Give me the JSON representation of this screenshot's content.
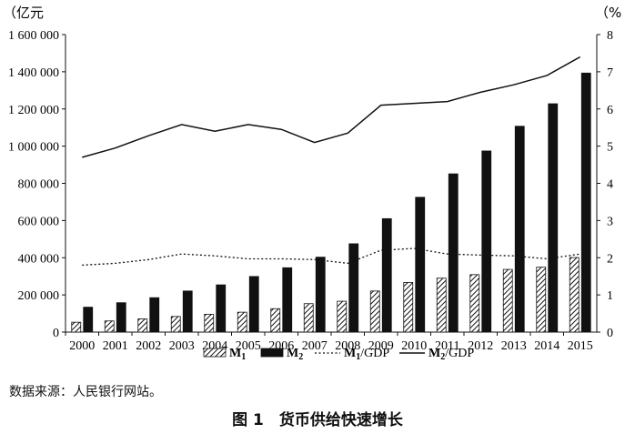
{
  "chart_data": {
    "type": "bar",
    "categories": [
      "2000",
      "2001",
      "2002",
      "2003",
      "2004",
      "2005",
      "2006",
      "2007",
      "2008",
      "2009",
      "2010",
      "2011",
      "2012",
      "2013",
      "2014",
      "2015"
    ],
    "left_axis": {
      "unit": "（亿元",
      "ylim": [
        0,
        1600000
      ],
      "ticks": [
        0,
        200000,
        400000,
        600000,
        800000,
        1000000,
        1200000,
        1400000,
        1600000
      ],
      "tick_labels": [
        "0",
        "200 000",
        "400 000",
        "600 000",
        "800 000",
        "1 000 000",
        "1 200 000",
        "1 400 000",
        "1 600 000"
      ]
    },
    "right_axis": {
      "unit": "（%",
      "ylim": [
        0,
        8
      ],
      "ticks": [
        0,
        1,
        2,
        3,
        4,
        5,
        6,
        7,
        8
      ],
      "tick_labels": [
        "0",
        "1",
        "2",
        "3",
        "4",
        "5",
        "6",
        "7",
        "8"
      ]
    },
    "series": [
      {
        "name": "M",
        "sub": "1",
        "kind": "bar",
        "pattern": "hatch",
        "axis": "left",
        "values": [
          53000,
          60000,
          71000,
          84000,
          96000,
          107000,
          126000,
          153000,
          166000,
          221000,
          267000,
          290000,
          309000,
          337000,
          349000,
          401000
        ]
      },
      {
        "name": "M",
        "sub": "2",
        "kind": "bar",
        "pattern": "solid",
        "axis": "left",
        "values": [
          134000,
          158000,
          185000,
          221000,
          254000,
          299000,
          346000,
          403000,
          475000,
          610000,
          725000,
          851000,
          974000,
          1107000,
          1228000,
          1393000
        ]
      },
      {
        "name": "M",
        "sub": "1",
        "suffix": "/GDP",
        "kind": "line",
        "dash": "dotted",
        "axis": "right",
        "values": [
          1.8,
          1.85,
          1.95,
          2.1,
          2.05,
          1.97,
          1.97,
          1.95,
          1.85,
          2.2,
          2.25,
          2.1,
          2.07,
          2.05,
          1.97,
          2.1
        ]
      },
      {
        "name": "M",
        "sub": "2",
        "suffix": "/GDP",
        "kind": "line",
        "dash": "solid",
        "axis": "right",
        "values": [
          4.7,
          4.95,
          5.28,
          5.58,
          5.4,
          5.58,
          5.45,
          5.1,
          5.35,
          6.1,
          6.15,
          6.2,
          6.45,
          6.65,
          6.9,
          7.4
        ]
      }
    ],
    "grid": false,
    "legend_position": "bottom"
  },
  "source_note": "数据来源：人民银行网站。",
  "caption": "图 1　货币供给快速增长"
}
